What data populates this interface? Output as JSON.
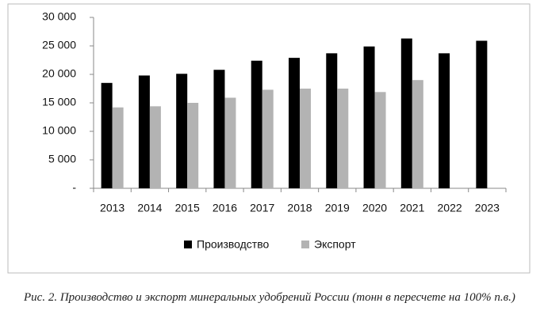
{
  "chart_data": {
    "type": "bar",
    "caption": "Рис. 2. Производство и экспорт минеральных удобрений России (тонн в пересчете на 100% п.в.)",
    "categories": [
      "2013",
      "2014",
      "2015",
      "2016",
      "2017",
      "2018",
      "2019",
      "2020",
      "2021",
      "2022",
      "2023"
    ],
    "series": [
      {
        "name": "Производство",
        "color": "#000000",
        "values": [
          18500,
          19800,
          20100,
          20800,
          22400,
          22900,
          23700,
          24900,
          26300,
          23700,
          25900
        ]
      },
      {
        "name": "Экспорт",
        "color": "#b3b3b3",
        "values": [
          14200,
          14400,
          15000,
          15900,
          17300,
          17500,
          17500,
          16900,
          19000,
          null,
          null
        ]
      }
    ],
    "ylim": [
      0,
      30000
    ],
    "yticks": [
      {
        "value": 0,
        "label": "-"
      },
      {
        "value": 5000,
        "label": "5 000"
      },
      {
        "value": 10000,
        "label": "10 000"
      },
      {
        "value": 15000,
        "label": "15 000"
      },
      {
        "value": 20000,
        "label": "20 000"
      },
      {
        "value": 25000,
        "label": "25 000"
      },
      {
        "value": 30000,
        "label": "30 000"
      }
    ],
    "grid": false,
    "legend": "bottom"
  }
}
